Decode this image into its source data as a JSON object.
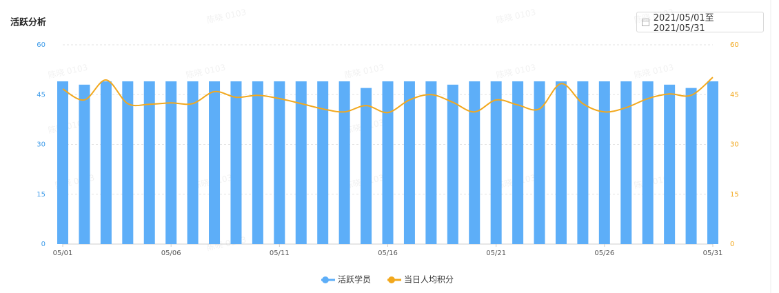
{
  "chart_data": {
    "type": "bar",
    "title": "活跃分析",
    "categories": [
      "05/01",
      null,
      null,
      null,
      null,
      "05/06",
      null,
      null,
      null,
      null,
      "05/11",
      null,
      null,
      null,
      null,
      "05/16",
      null,
      null,
      null,
      null,
      "05/21",
      null,
      null,
      null,
      null,
      "05/26",
      null,
      null,
      null,
      null,
      "05/31"
    ],
    "series": [
      {
        "name": "活跃学员",
        "type": "bar",
        "color": "#5daef8",
        "values": [
          49,
          48,
          49,
          49,
          49,
          49,
          49,
          49,
          49,
          49,
          49,
          49,
          49,
          49,
          47,
          49,
          49,
          49,
          48,
          49,
          49,
          49,
          49,
          49,
          49,
          49,
          49,
          49,
          48,
          47,
          49
        ]
      },
      {
        "name": "当日人均积分",
        "type": "line",
        "axis": "y2",
        "color": "#f2a81d",
        "values": [
          46.7,
          43.4,
          49.4,
          42.3,
          42.1,
          42.5,
          42.3,
          45.9,
          44.2,
          44.8,
          43.8,
          42.3,
          40.7,
          39.8,
          41.7,
          39.6,
          43.4,
          45.0,
          42.7,
          39.8,
          43.4,
          41.9,
          40.7,
          48.3,
          42.3,
          39.8,
          41.1,
          43.8,
          45.2,
          44.8,
          50.2
        ]
      }
    ],
    "ylim": [
      0,
      60
    ],
    "yticks": [
      0,
      15,
      30,
      45,
      60
    ],
    "ytick_color": "#3d9be9",
    "y2lim": [
      0,
      60
    ],
    "y2ticks": [
      0,
      15,
      30,
      45,
      60
    ],
    "y2tick_color": "#f2a81d",
    "grid": true,
    "legend": "bottom",
    "watermark": "陈晓 0103"
  },
  "date_range": "2021/05/01至2021/05/31"
}
